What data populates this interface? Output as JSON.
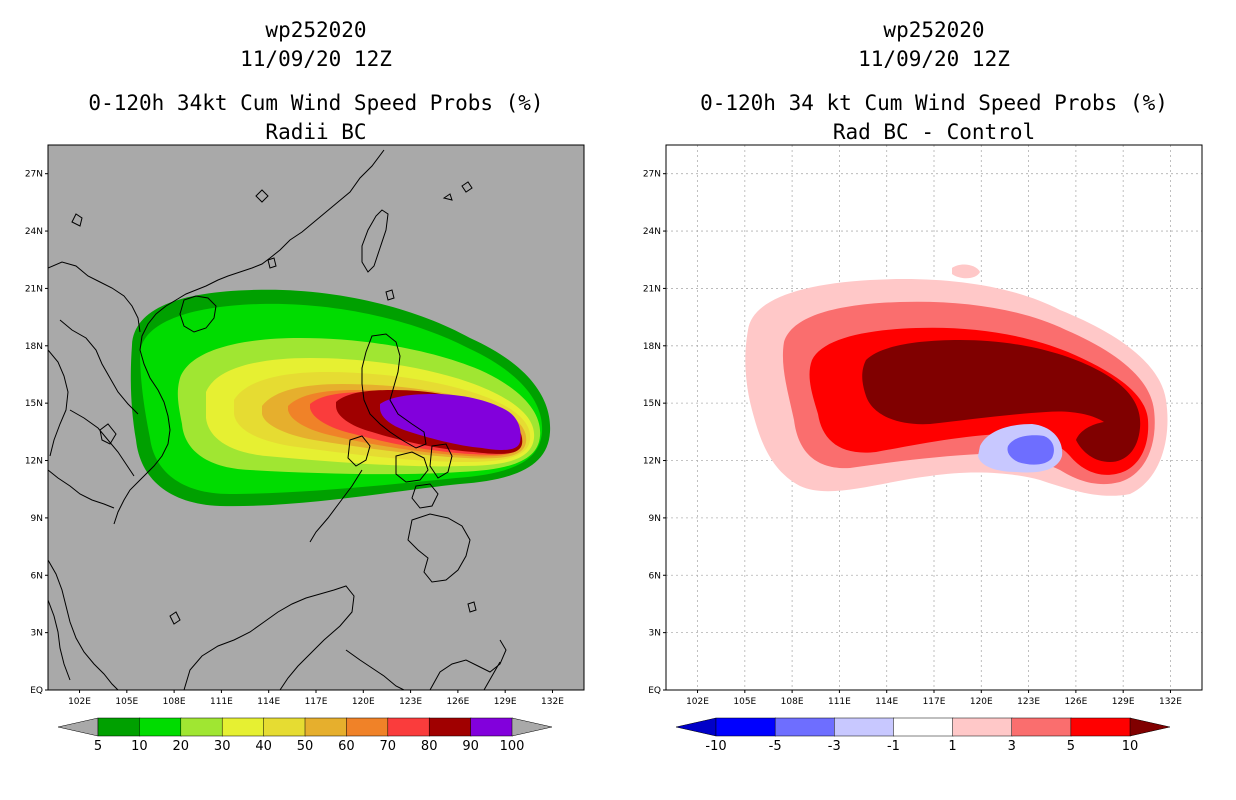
{
  "left_panel": {
    "title_line1": "wp252020",
    "title_line2": "11/09/20 12Z",
    "title_line3": "0-120h 34kt Cum Wind Speed Probs (%)",
    "title_line4": "Radii BC",
    "colorbar_labels": [
      "5",
      "10",
      "20",
      "30",
      "40",
      "50",
      "60",
      "70",
      "80",
      "90",
      "100"
    ],
    "colorbar_colors": [
      "#00a000",
      "#00dc00",
      "#a0e632",
      "#e6f032",
      "#e6dc32",
      "#e6af2d",
      "#f08228",
      "#fa3c3c",
      "#a00000",
      "#8200dc"
    ],
    "background_color": "#a9a9a9"
  },
  "right_panel": {
    "title_line1": "wp252020",
    "title_line2": "11/09/20 12Z",
    "title_line3": "0-120h 34 kt Cum Wind Speed Probs (%)",
    "title_line4": "Rad BC - Control",
    "colorbar_labels": [
      "-10",
      "-5",
      "-3",
      "-1",
      "1",
      "3",
      "5",
      "10"
    ],
    "colorbar_colors": [
      "#0000c8",
      "#0000ff",
      "#6e6eff",
      "#c8c8ff",
      "#ffffff",
      "#ffc8c8",
      "#fa6e6e",
      "#ff0000",
      "#800000"
    ],
    "background_color": "#ffffff"
  },
  "axes": {
    "lat_labels": [
      "27N",
      "24N",
      "21N",
      "18N",
      "15N",
      "12N",
      "9N",
      "6N",
      "3N",
      "EQ"
    ],
    "lon_labels": [
      "102E",
      "105E",
      "108E",
      "111E",
      "114E",
      "117E",
      "120E",
      "123E",
      "126E",
      "129E",
      "132E"
    ]
  }
}
